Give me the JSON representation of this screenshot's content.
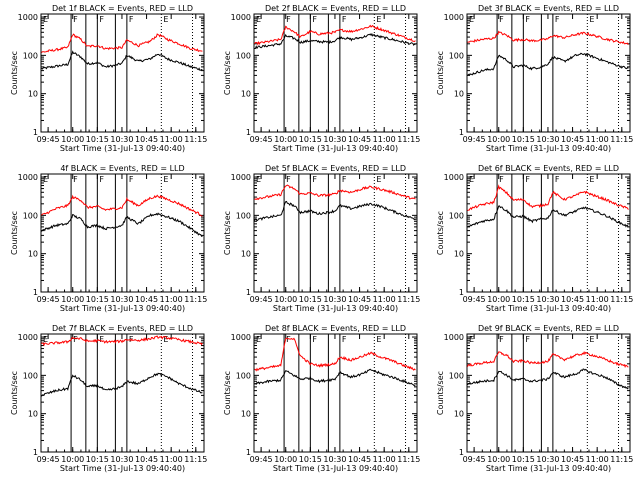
{
  "common": {
    "xlabel": "Start Time (31-Jul-13 09:40:40)",
    "ylabel": "Counts/sec",
    "x_tick_labels": [
      "09:45",
      "10:00",
      "10:15",
      "10:30",
      "10:45",
      "11:00",
      "11:15"
    ],
    "y_tick_labels": [
      "1",
      "10",
      "100",
      "1000"
    ],
    "colors": {
      "events": "#000000",
      "lld": "#ff0000"
    }
  },
  "chart_data": [
    {
      "type": "line",
      "title": "Det 1f BLACK = Events, RED = LLD",
      "xscale": "time",
      "yscale": "log",
      "xlim": [
        "09:40:40",
        "11:20"
      ],
      "ylim": [
        1,
        1200
      ],
      "vlines": [
        "09:59",
        "10:08",
        "10:15",
        "10:26",
        "10:33",
        "10:54",
        "11:13"
      ],
      "vline_labels": [
        "E",
        "F",
        "F",
        "F",
        "E"
      ],
      "series": [
        {
          "name": "Events",
          "color": "#000000",
          "x": [
            "09:41",
            "09:50",
            "09:57",
            "10:00",
            "10:05",
            "10:09",
            "10:15",
            "10:20",
            "10:26",
            "10:30",
            "10:33",
            "10:40",
            "10:47",
            "10:52",
            "10:58",
            "11:05",
            "11:12",
            "11:19"
          ],
          "values": [
            45,
            52,
            58,
            120,
            90,
            60,
            65,
            50,
            55,
            62,
            100,
            70,
            80,
            110,
            80,
            65,
            50,
            42
          ]
        },
        {
          "name": "LLD",
          "color": "#ff0000",
          "x": [
            "09:41",
            "09:50",
            "09:57",
            "10:00",
            "10:05",
            "10:09",
            "10:15",
            "10:20",
            "10:26",
            "10:30",
            "10:33",
            "10:40",
            "10:47",
            "10:52",
            "10:58",
            "11:05",
            "11:12",
            "11:19"
          ],
          "values": [
            120,
            140,
            160,
            350,
            260,
            170,
            180,
            150,
            155,
            160,
            250,
            180,
            230,
            350,
            260,
            200,
            150,
            130
          ]
        }
      ]
    },
    {
      "type": "line",
      "title": "Det 2f BLACK = Events, RED = LLD",
      "xscale": "time",
      "yscale": "log",
      "xlim": [
        "09:40:40",
        "11:20"
      ],
      "ylim": [
        1,
        1200
      ],
      "vlines": [
        "09:59",
        "10:08",
        "10:15",
        "10:26",
        "10:33",
        "10:54",
        "11:13"
      ],
      "vline_labels": [
        "E",
        "F",
        "F",
        "F",
        "E"
      ],
      "series": [
        {
          "name": "Events",
          "color": "#000000",
          "x": [
            "09:41",
            "09:50",
            "09:57",
            "10:00",
            "10:05",
            "10:09",
            "10:15",
            "10:20",
            "10:26",
            "10:30",
            "10:33",
            "10:40",
            "10:47",
            "10:52",
            "10:58",
            "11:05",
            "11:12",
            "11:19"
          ],
          "values": [
            160,
            180,
            200,
            320,
            280,
            220,
            240,
            230,
            220,
            240,
            300,
            260,
            300,
            350,
            300,
            260,
            220,
            190
          ]
        },
        {
          "name": "LLD",
          "color": "#ff0000",
          "x": [
            "09:41",
            "09:50",
            "09:57",
            "10:00",
            "10:05",
            "10:09",
            "10:15",
            "10:20",
            "10:26",
            "10:30",
            "10:33",
            "10:40",
            "10:47",
            "10:52",
            "10:58",
            "11:05",
            "11:12",
            "11:19"
          ],
          "values": [
            200,
            230,
            260,
            550,
            420,
            300,
            420,
            360,
            380,
            400,
            460,
            420,
            500,
            580,
            480,
            380,
            300,
            240
          ]
        }
      ]
    },
    {
      "type": "line",
      "title": "Det 3f BLACK = Events, RED = LLD",
      "xscale": "time",
      "yscale": "log",
      "xlim": [
        "09:40:40",
        "11:20"
      ],
      "ylim": [
        1,
        1200
      ],
      "vlines": [
        "09:59",
        "10:08",
        "10:15",
        "10:26",
        "10:33",
        "10:54",
        "11:13"
      ],
      "vline_labels": [
        "E",
        "F",
        "F",
        "F",
        "E"
      ],
      "series": [
        {
          "name": "Events",
          "color": "#000000",
          "x": [
            "09:41",
            "09:50",
            "09:57",
            "10:00",
            "10:05",
            "10:09",
            "10:15",
            "10:20",
            "10:26",
            "10:30",
            "10:33",
            "10:40",
            "10:47",
            "10:52",
            "10:58",
            "11:05",
            "11:12",
            "11:19"
          ],
          "values": [
            30,
            40,
            45,
            100,
            75,
            50,
            55,
            45,
            50,
            60,
            90,
            70,
            100,
            110,
            90,
            70,
            55,
            45
          ]
        },
        {
          "name": "LLD",
          "color": "#ff0000",
          "x": [
            "09:41",
            "09:50",
            "09:57",
            "10:00",
            "10:05",
            "10:09",
            "10:15",
            "10:20",
            "10:26",
            "10:30",
            "10:33",
            "10:40",
            "10:47",
            "10:52",
            "10:58",
            "11:05",
            "11:12",
            "11:19"
          ],
          "values": [
            220,
            260,
            280,
            400,
            330,
            250,
            260,
            240,
            250,
            270,
            330,
            290,
            350,
            380,
            330,
            270,
            230,
            200
          ]
        }
      ]
    },
    {
      "type": "line",
      "title": "4f BLACK = Events, RED = LLD",
      "xscale": "time",
      "yscale": "log",
      "xlim": [
        "09:40:40",
        "11:20"
      ],
      "ylim": [
        1,
        1200
      ],
      "vlines": [
        "09:59",
        "10:08",
        "10:15",
        "10:26",
        "10:33",
        "10:54",
        "11:13"
      ],
      "vline_labels": [
        "E",
        "F",
        "F",
        "F",
        "E"
      ],
      "series": [
        {
          "name": "Events",
          "color": "#000000",
          "x": [
            "09:41",
            "09:50",
            "09:57",
            "10:00",
            "10:05",
            "10:09",
            "10:15",
            "10:20",
            "10:26",
            "10:30",
            "10:33",
            "10:40",
            "10:47",
            "10:52",
            "10:58",
            "11:05",
            "11:12",
            "11:19"
          ],
          "values": [
            40,
            55,
            60,
            100,
            80,
            50,
            55,
            45,
            50,
            55,
            90,
            60,
            100,
            110,
            90,
            70,
            45,
            28
          ]
        },
        {
          "name": "LLD",
          "color": "#ff0000",
          "x": [
            "09:41",
            "09:50",
            "09:57",
            "10:00",
            "10:05",
            "10:09",
            "10:15",
            "10:20",
            "10:26",
            "10:30",
            "10:33",
            "10:40",
            "10:47",
            "10:52",
            "10:58",
            "11:05",
            "11:12",
            "11:19"
          ],
          "values": [
            100,
            150,
            180,
            300,
            250,
            160,
            170,
            140,
            150,
            160,
            260,
            180,
            280,
            320,
            260,
            200,
            140,
            100
          ]
        }
      ]
    },
    {
      "type": "line",
      "title": "Det 5f BLACK = Events, RED = LLD",
      "xscale": "time",
      "yscale": "log",
      "xlim": [
        "09:40:40",
        "11:20"
      ],
      "ylim": [
        1,
        1200
      ],
      "vlines": [
        "09:59",
        "10:08",
        "10:15",
        "10:26",
        "10:33",
        "10:54",
        "11:13"
      ],
      "vline_labels": [
        "E",
        "F",
        "F",
        "F",
        "E"
      ],
      "series": [
        {
          "name": "Events",
          "color": "#000000",
          "x": [
            "09:41",
            "09:50",
            "09:57",
            "10:00",
            "10:05",
            "10:09",
            "10:15",
            "10:20",
            "10:26",
            "10:30",
            "10:33",
            "10:40",
            "10:47",
            "10:52",
            "10:58",
            "11:05",
            "11:12",
            "11:19"
          ],
          "values": [
            75,
            90,
            100,
            220,
            180,
            120,
            130,
            110,
            120,
            130,
            180,
            150,
            180,
            200,
            170,
            130,
            100,
            80
          ]
        },
        {
          "name": "LLD",
          "color": "#ff0000",
          "x": [
            "09:41",
            "09:50",
            "09:57",
            "10:00",
            "10:05",
            "10:09",
            "10:15",
            "10:20",
            "10:26",
            "10:30",
            "10:33",
            "10:40",
            "10:47",
            "10:52",
            "10:58",
            "11:05",
            "11:12",
            "11:19"
          ],
          "values": [
            270,
            310,
            350,
            600,
            500,
            360,
            380,
            330,
            340,
            360,
            450,
            400,
            500,
            550,
            480,
            400,
            320,
            260
          ]
        }
      ]
    },
    {
      "type": "line",
      "title": "Det 6f BLACK = Events, RED = LLD",
      "xscale": "time",
      "yscale": "log",
      "xlim": [
        "09:40:40",
        "11:20"
      ],
      "ylim": [
        1,
        1200
      ],
      "vlines": [
        "09:59",
        "10:08",
        "10:15",
        "10:26",
        "10:33",
        "10:54",
        "11:13"
      ],
      "vline_labels": [
        "E",
        "F",
        "F",
        "F",
        "E"
      ],
      "series": [
        {
          "name": "Events",
          "color": "#000000",
          "x": [
            "09:41",
            "09:50",
            "09:57",
            "10:00",
            "10:05",
            "10:09",
            "10:15",
            "10:20",
            "10:26",
            "10:30",
            "10:33",
            "10:40",
            "10:47",
            "10:52",
            "10:58",
            "11:05",
            "11:12",
            "11:19"
          ],
          "values": [
            50,
            70,
            80,
            180,
            130,
            90,
            95,
            70,
            80,
            85,
            140,
            100,
            130,
            160,
            130,
            100,
            70,
            50
          ]
        },
        {
          "name": "LLD",
          "color": "#ff0000",
          "x": [
            "09:41",
            "09:50",
            "09:57",
            "10:00",
            "10:05",
            "10:09",
            "10:15",
            "10:20",
            "10:26",
            "10:30",
            "10:33",
            "10:40",
            "10:47",
            "10:52",
            "10:58",
            "11:05",
            "11:12",
            "11:19"
          ],
          "values": [
            140,
            190,
            220,
            550,
            380,
            250,
            260,
            170,
            180,
            200,
            400,
            260,
            330,
            420,
            330,
            260,
            190,
            150
          ]
        }
      ]
    },
    {
      "type": "line",
      "title": "Det 7f BLACK = Events, RED = LLD",
      "xscale": "time",
      "yscale": "log",
      "xlim": [
        "09:40:40",
        "11:20"
      ],
      "ylim": [
        1,
        1200
      ],
      "vlines": [
        "09:59",
        "10:08",
        "10:15",
        "10:26",
        "10:33",
        "10:54",
        "11:13"
      ],
      "vline_labels": [
        "E",
        "F",
        "F",
        "F",
        "E"
      ],
      "series": [
        {
          "name": "Events",
          "color": "#000000",
          "x": [
            "09:41",
            "09:50",
            "09:57",
            "10:00",
            "10:05",
            "10:09",
            "10:15",
            "10:20",
            "10:26",
            "10:30",
            "10:33",
            "10:40",
            "10:47",
            "10:52",
            "10:58",
            "11:05",
            "11:12",
            "11:19"
          ],
          "values": [
            30,
            40,
            45,
            100,
            75,
            50,
            55,
            40,
            45,
            50,
            70,
            60,
            90,
            110,
            90,
            60,
            45,
            35
          ]
        },
        {
          "name": "LLD",
          "color": "#ff0000",
          "x": [
            "09:41",
            "09:50",
            "09:57",
            "10:00",
            "10:05",
            "10:09",
            "10:15",
            "10:20",
            "10:26",
            "10:30",
            "10:33",
            "10:40",
            "10:47",
            "10:52",
            "10:58",
            "11:05",
            "11:12",
            "11:19"
          ],
          "values": [
            650,
            700,
            750,
            950,
            900,
            780,
            800,
            750,
            760,
            780,
            860,
            820,
            900,
            1000,
            950,
            850,
            750,
            650
          ]
        }
      ]
    },
    {
      "type": "line",
      "title": "Det 8f BLACK = Events, RED = LLD",
      "xscale": "time",
      "yscale": "log",
      "xlim": [
        "09:40:40",
        "11:20"
      ],
      "ylim": [
        1,
        1200
      ],
      "vlines": [
        "09:59",
        "10:08",
        "10:15",
        "10:26",
        "10:33",
        "10:54",
        "11:13"
      ],
      "vline_labels": [
        "E",
        "F",
        "F",
        "F",
        "E"
      ],
      "series": [
        {
          "name": "Events",
          "color": "#000000",
          "x": [
            "09:41",
            "09:50",
            "09:57",
            "10:00",
            "10:05",
            "10:09",
            "10:15",
            "10:20",
            "10:26",
            "10:30",
            "10:33",
            "10:40",
            "10:47",
            "10:52",
            "10:58",
            "11:05",
            "11:12",
            "11:19"
          ],
          "values": [
            60,
            70,
            75,
            130,
            100,
            80,
            85,
            70,
            75,
            80,
            120,
            90,
            110,
            140,
            110,
            90,
            70,
            55
          ]
        },
        {
          "name": "LLD",
          "color": "#ff0000",
          "x": [
            "09:41",
            "09:50",
            "09:57",
            "10:00",
            "10:05",
            "10:09",
            "10:15",
            "10:20",
            "10:26",
            "10:30",
            "10:33",
            "10:40",
            "10:47",
            "10:52",
            "10:58",
            "11:05",
            "11:12",
            "11:19"
          ],
          "values": [
            140,
            160,
            180,
            950,
            900,
            320,
            200,
            180,
            190,
            200,
            300,
            250,
            320,
            380,
            300,
            240,
            180,
            140
          ]
        }
      ]
    },
    {
      "type": "line",
      "title": "Det 9f BLACK = Events, RED = LLD",
      "xscale": "time",
      "yscale": "log",
      "xlim": [
        "09:40:40",
        "11:20"
      ],
      "ylim": [
        1,
        1200
      ],
      "vlines": [
        "09:59",
        "10:08",
        "10:15",
        "10:26",
        "10:33",
        "10:54",
        "11:13"
      ],
      "vline_labels": [
        "E",
        "F",
        "F",
        "F",
        "E"
      ],
      "series": [
        {
          "name": "Events",
          "color": "#000000",
          "x": [
            "09:41",
            "09:50",
            "09:57",
            "10:00",
            "10:05",
            "10:09",
            "10:15",
            "10:20",
            "10:26",
            "10:30",
            "10:33",
            "10:40",
            "10:47",
            "10:52",
            "10:58",
            "11:05",
            "11:12",
            "11:19"
          ],
          "values": [
            60,
            70,
            75,
            130,
            100,
            75,
            80,
            70,
            75,
            80,
            120,
            90,
            110,
            140,
            110,
            90,
            60,
            45
          ]
        },
        {
          "name": "LLD",
          "color": "#ff0000",
          "x": [
            "09:41",
            "09:50",
            "09:57",
            "10:00",
            "10:05",
            "10:09",
            "10:15",
            "10:20",
            "10:26",
            "10:30",
            "10:33",
            "10:40",
            "10:47",
            "10:52",
            "10:58",
            "11:05",
            "11:12",
            "11:19"
          ],
          "values": [
            180,
            210,
            230,
            400,
            330,
            230,
            240,
            210,
            220,
            230,
            350,
            260,
            330,
            380,
            330,
            260,
            200,
            170
          ]
        }
      ]
    }
  ]
}
